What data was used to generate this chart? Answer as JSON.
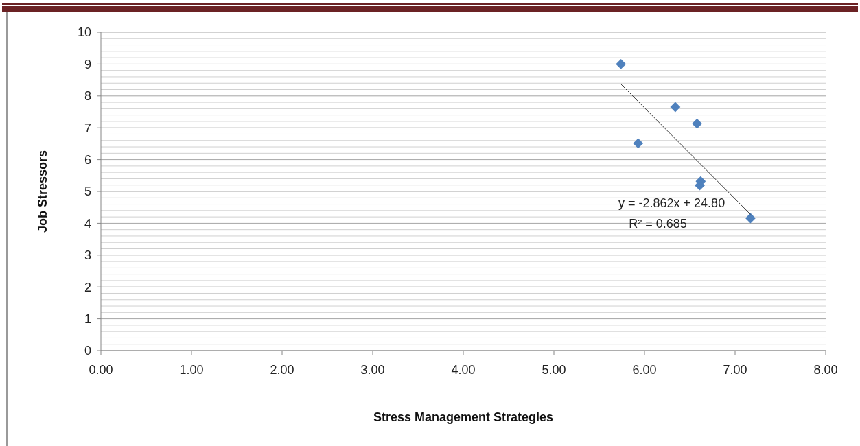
{
  "chart_data": {
    "type": "scatter",
    "xlabel": "Stress Management Strategies",
    "ylabel": "Job Stressors",
    "series": [
      {
        "color": "#4f81bd",
        "x": [
          5.74,
          6.34,
          6.58,
          5.93,
          6.62,
          6.61,
          7.17
        ],
        "values": [
          9.0,
          7.65,
          7.13,
          6.51,
          5.32,
          5.19,
          4.16
        ],
        "marker": "diamond"
      },
      {
        "type": "line",
        "color": "#404040",
        "x": [
          5.74,
          7.17
        ],
        "values": [
          8.37,
          4.28
        ]
      }
    ],
    "annotations": [
      "y = -2.862x + 24.80",
      "R² = 0.685"
    ],
    "xlim": [
      0,
      8
    ],
    "xticks": [
      {
        "value": 0,
        "label": "0.00"
      },
      {
        "value": 1,
        "label": "1.00"
      },
      {
        "value": 2,
        "label": "2.00"
      },
      {
        "value": 3,
        "label": "3.00"
      },
      {
        "value": 4,
        "label": "4.00"
      },
      {
        "value": 5,
        "label": "5.00"
      },
      {
        "value": 6,
        "label": "6.00"
      },
      {
        "value": 7,
        "label": "7.00"
      },
      {
        "value": 8,
        "label": "8.00"
      }
    ],
    "ylim": [
      0,
      10
    ],
    "yticks": [
      0,
      1,
      2,
      3,
      4,
      5,
      6,
      7,
      8,
      9,
      10
    ],
    "grid": "y"
  }
}
